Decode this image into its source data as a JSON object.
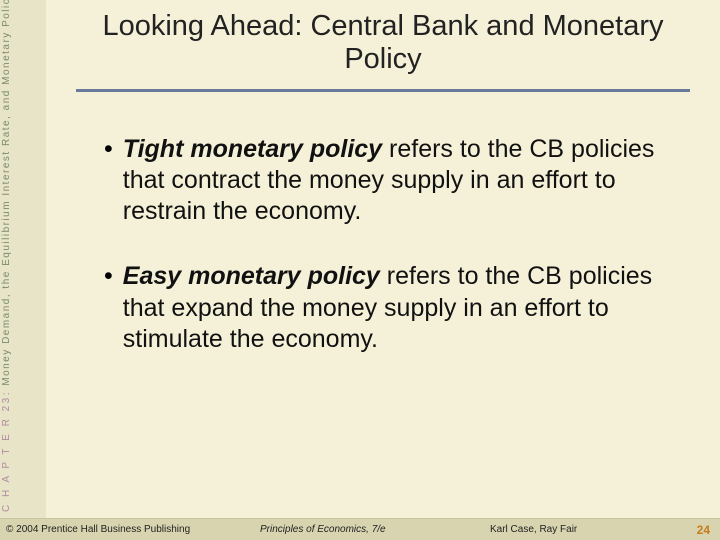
{
  "sidebar": {
    "chapter_prefix": "C H A P T E R  23:",
    "chapter_text": "  Money Demand, the Equilibrium Interest Rate,   and Monetary Policy"
  },
  "title": "Looking Ahead:  Central Bank and Monetary Policy",
  "bullets": [
    {
      "bold": "Tight monetary policy",
      "rest": " refers to the CB policies that contract the money supply in an effort to restrain the economy."
    },
    {
      "bold": "Easy monetary policy",
      "rest": " refers to the CB policies that expand the money supply in an effort to stimulate the economy."
    }
  ],
  "footer": {
    "copyright": "© 2004 Prentice Hall Business Publishing",
    "book": "Principles of Economics, 7/e",
    "authors": "Karl Case, Ray Fair",
    "page": "24"
  },
  "colors": {
    "background": "#f5f1d8",
    "sidebar_bg": "#e8e4c8",
    "rule": "#6a7a9a",
    "footer_bg": "#d8d4b0",
    "page_num": "#c77c1a",
    "sidebar_chapter": "#b08aa0",
    "sidebar_text": "#7a8a70"
  },
  "fonts": {
    "title_size_pt": 22,
    "body_size_pt": 19,
    "footer_size_pt": 8,
    "sidebar_size_pt": 8
  }
}
